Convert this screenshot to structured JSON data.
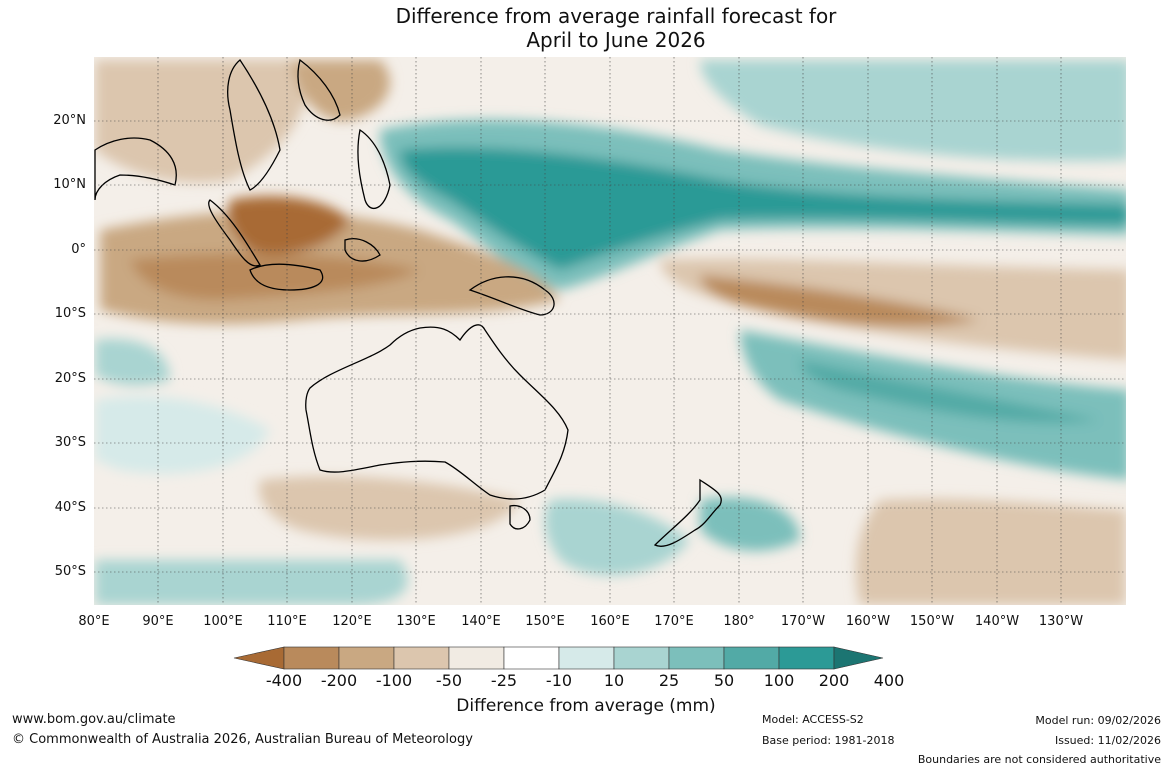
{
  "title_line1": "Difference from average rainfall forecast for",
  "title_line2": "April to June 2026",
  "lat_labels": [
    "20°N",
    "10°N",
    "0°",
    "10°S",
    "20°S",
    "30°S",
    "40°S",
    "50°S"
  ],
  "lon_labels": [
    "80°E",
    "90°E",
    "100°E",
    "110°E",
    "120°E",
    "130°E",
    "140°E",
    "150°E",
    "160°E",
    "170°E",
    "180°",
    "170°W",
    "160°W",
    "150°W",
    "140°W",
    "130°W"
  ],
  "colorbar": {
    "ticks": [
      "-400",
      "-200",
      "-100",
      "-50",
      "-25",
      "-10",
      "10",
      "25",
      "50",
      "100",
      "200",
      "400"
    ],
    "colors": [
      "#a86a34",
      "#b98a5c",
      "#c9a882",
      "#dcc6ae",
      "#f1ebe3",
      "#ffffff",
      "#d6eae9",
      "#a9d4d1",
      "#7cbfbb",
      "#52aaa6",
      "#2c9a96",
      "#1c7572"
    ],
    "label": "Difference from average (mm)"
  },
  "footer": {
    "website": "www.bom.gov.au/climate",
    "copyright": "© Commonwealth of Australia 2026, Australian Bureau of Meteorology",
    "model": "Model: ACCESS-S2",
    "base_period": "Base period: 1981-2018",
    "model_run": "Model run: 09/02/2026",
    "issued": "Issued: 11/02/2026",
    "disclaimer": "Boundaries are not considered authoritative"
  }
}
